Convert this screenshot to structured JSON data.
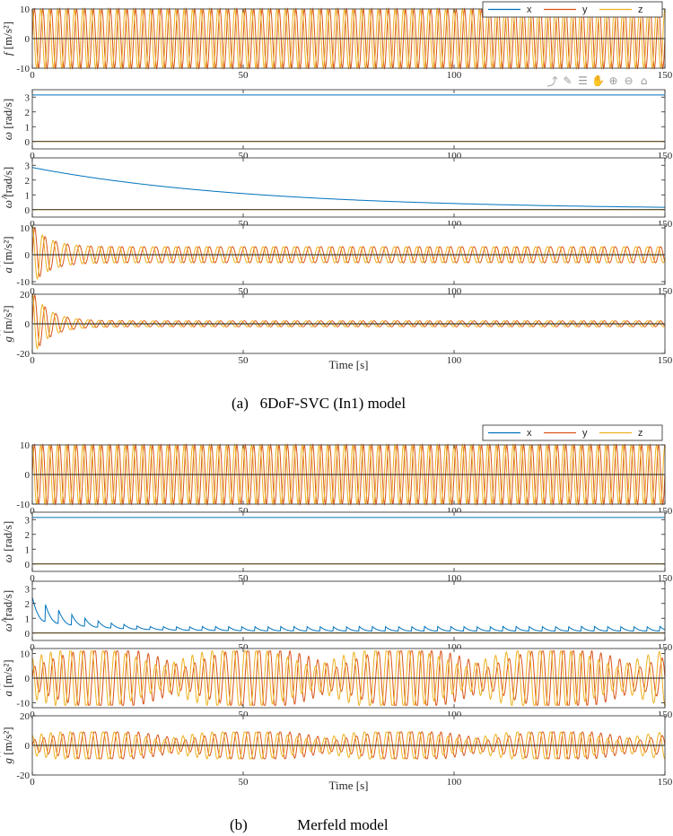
{
  "colors": {
    "x": "#0072BD",
    "y": "#D95319",
    "z": "#EDB120",
    "axis": "#262626",
    "zero": "#000000"
  },
  "toolbar": [
    {
      "name": "export-icon",
      "glyph": "⤴"
    },
    {
      "name": "brush-icon",
      "glyph": "✎"
    },
    {
      "name": "datatip-icon",
      "glyph": "☰"
    },
    {
      "name": "pan-icon",
      "glyph": "✋"
    },
    {
      "name": "zoom-in-icon",
      "glyph": "⊕"
    },
    {
      "name": "zoom-out-icon",
      "glyph": "⊖"
    },
    {
      "name": "home-icon",
      "glyph": "⌂"
    }
  ],
  "figures": [
    {
      "caption": "(a)   6DoF-SVC (In1) model",
      "xlabel": "Time [s]",
      "chart_data": [
        {
          "type": "line",
          "sym": "f",
          "unit": "[m/s²]",
          "hat": false,
          "xlim": [
            0,
            150
          ],
          "ylim": [
            -10,
            10
          ],
          "xticks": [
            0,
            50,
            100,
            150
          ],
          "yticks": [
            -10,
            0,
            10
          ],
          "legend": [
            "x",
            "y",
            "z"
          ],
          "legend_position": "top-right",
          "series": [
            {
              "name": "x",
              "model": {
                "kind": "const",
                "a": 0
              }
            },
            {
              "name": "y",
              "model": {
                "kind": "sin",
                "amp": 10,
                "period": 2.0,
                "phase": 0
              }
            },
            {
              "name": "z",
              "model": {
                "kind": "sin",
                "amp": 10,
                "period": 2.0,
                "phase": 1.57
              }
            }
          ]
        },
        {
          "type": "line",
          "sym": "ω",
          "unit": "[rad/s]",
          "hat": false,
          "xlim": [
            0,
            150
          ],
          "ylim": [
            -0.5,
            3.5
          ],
          "xticks": [
            0,
            50,
            100,
            150
          ],
          "yticks": [
            0,
            1,
            2,
            3
          ],
          "series": [
            {
              "name": "x",
              "model": {
                "kind": "const",
                "a": 3.14
              }
            },
            {
              "name": "z",
              "model": {
                "kind": "const",
                "a": 0
              }
            }
          ]
        },
        {
          "type": "line",
          "sym": "ω",
          "unit": "[rad/s]",
          "hat": true,
          "xlim": [
            0,
            150
          ],
          "ylim": [
            -0.5,
            3.5
          ],
          "xticks": [
            0,
            50,
            100,
            150
          ],
          "yticks": [
            0,
            1,
            2,
            3
          ],
          "series": [
            {
              "name": "x",
              "model": {
                "kind": "exp",
                "a0": 2.85,
                "tau": 52
              }
            },
            {
              "name": "z",
              "model": {
                "kind": "const",
                "a": 0
              }
            }
          ]
        },
        {
          "type": "line",
          "sym": "a",
          "unit": "[m/s²]",
          "hat": true,
          "xlim": [
            0,
            150
          ],
          "ylim": [
            -11,
            11
          ],
          "xticks": [
            0,
            50,
            100,
            150
          ],
          "yticks": [
            -10,
            0,
            10
          ],
          "series": [
            {
              "name": "x",
              "model": {
                "kind": "const",
                "a": 0
              }
            },
            {
              "name": "y",
              "model": {
                "kind": "ring",
                "base": 3,
                "over": 8,
                "tau": 4,
                "period": 2.6,
                "phase": 0
              }
            },
            {
              "name": "z",
              "model": {
                "kind": "ring",
                "base": 3,
                "over": 8,
                "tau": 4,
                "period": 2.6,
                "phase": 1.57
              }
            }
          ]
        },
        {
          "type": "line",
          "sym": "g",
          "unit": "[m/s²]",
          "hat": true,
          "xlim": [
            0,
            150
          ],
          "ylim": [
            -20,
            20
          ],
          "xticks": [
            0,
            50,
            100,
            150
          ],
          "yticks": [
            -20,
            0,
            20
          ],
          "series": [
            {
              "name": "x",
              "model": {
                "kind": "const",
                "a": 0
              }
            },
            {
              "name": "y",
              "model": {
                "kind": "ring",
                "base": 2,
                "over": 20,
                "tau": 4,
                "period": 2.6,
                "phase": 0
              }
            },
            {
              "name": "z",
              "model": {
                "kind": "ring",
                "base": 2,
                "over": 20,
                "tau": 4,
                "period": 2.6,
                "phase": 1.57
              }
            }
          ]
        }
      ]
    },
    {
      "caption": "(b)             Merfeld model",
      "xlabel": "Time [s]",
      "chart_data": [
        {
          "type": "line",
          "sym": "",
          "unit": "",
          "hat": false,
          "xlim": [
            0,
            150
          ],
          "ylim": [
            -10,
            10
          ],
          "xticks": [
            0,
            50,
            100,
            150
          ],
          "yticks": [
            -10,
            0,
            10
          ],
          "legend": [
            "x",
            "y",
            "z"
          ],
          "legend_position": "top-right",
          "series": [
            {
              "name": "x",
              "model": {
                "kind": "const",
                "a": 0
              }
            },
            {
              "name": "y",
              "model": {
                "kind": "sin",
                "amp": 10,
                "period": 2.0,
                "phase": 0
              }
            },
            {
              "name": "z",
              "model": {
                "kind": "sin",
                "amp": 10,
                "period": 2.0,
                "phase": 1.57
              }
            }
          ]
        },
        {
          "type": "line",
          "sym": "ω",
          "unit": "[rad/s]",
          "hat": false,
          "xlim": [
            0,
            150
          ],
          "ylim": [
            -0.5,
            3.5
          ],
          "xticks": [
            0,
            50,
            100,
            150
          ],
          "yticks": [
            0,
            1,
            2,
            3
          ],
          "series": [
            {
              "name": "x",
              "model": {
                "kind": "const",
                "a": 3.14
              }
            },
            {
              "name": "z",
              "model": {
                "kind": "const",
                "a": 0
              }
            }
          ]
        },
        {
          "type": "line",
          "sym": "ω",
          "unit": "[rad/s]",
          "hat": true,
          "xlim": [
            0,
            150
          ],
          "ylim": [
            -0.5,
            3.5
          ],
          "xticks": [
            0,
            50,
            100,
            150
          ],
          "yticks": [
            0,
            1,
            2,
            3
          ],
          "series": [
            {
              "name": "x",
              "model": {
                "kind": "saw",
                "a0": 2.4,
                "floor": 0.1,
                "peak": 0.45,
                "tau": 14,
                "period": 3.1
              }
            },
            {
              "name": "z",
              "model": {
                "kind": "const",
                "a": 0
              }
            }
          ]
        },
        {
          "type": "line",
          "sym": "a",
          "unit": "[m/s²]",
          "hat": true,
          "xlim": [
            0,
            150
          ],
          "ylim": [
            -12,
            12
          ],
          "xticks": [
            0,
            50,
            100,
            150
          ],
          "yticks": [
            -10,
            0,
            10
          ],
          "series": [
            {
              "name": "x",
              "model": {
                "kind": "const",
                "a": 0
              }
            },
            {
              "name": "y",
              "model": {
                "kind": "beat",
                "amp": 11,
                "period": 2.4,
                "slow": 36,
                "phase": 0
              }
            },
            {
              "name": "z",
              "model": {
                "kind": "beat",
                "amp": 11,
                "period": 2.4,
                "slow": 36,
                "phase": 1.57
              }
            }
          ]
        },
        {
          "type": "line",
          "sym": "g",
          "unit": "[m/s²]",
          "hat": true,
          "xlim": [
            0,
            150
          ],
          "ylim": [
            -20,
            20
          ],
          "xticks": [
            0,
            50,
            100,
            150
          ],
          "yticks": [
            -20,
            0,
            20
          ],
          "series": [
            {
              "name": "x",
              "model": {
                "kind": "const",
                "a": 0
              }
            },
            {
              "name": "y",
              "model": {
                "kind": "beat",
                "amp": 9,
                "period": 2.4,
                "slow": 36,
                "phase": 0
              }
            },
            {
              "name": "z",
              "model": {
                "kind": "beat",
                "amp": 9,
                "period": 2.4,
                "slow": 36,
                "phase": 1.57
              }
            }
          ]
        }
      ]
    }
  ]
}
